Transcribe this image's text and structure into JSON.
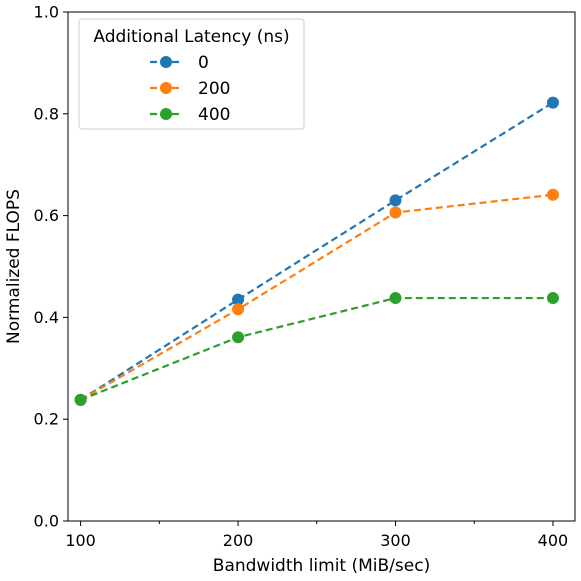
{
  "chart_data": {
    "type": "line",
    "title": "",
    "xlabel": "Bandwidth limit (MiB/sec)",
    "ylabel": "Normalized FLOPS",
    "x": [
      100,
      200,
      300,
      400
    ],
    "x_ticks": [
      "100",
      "200",
      "300",
      "400"
    ],
    "y_ticks": [
      "0.0",
      "0.2",
      "0.4",
      "0.6",
      "0.8",
      "1.0"
    ],
    "xlim": [
      92,
      414
    ],
    "ylim": [
      0.0,
      1.0
    ],
    "grid": false,
    "legend": {
      "title": "Additional Latency (ns)",
      "placement": "top-left"
    },
    "series": [
      {
        "name": "0",
        "color": "#1f77b4",
        "values": [
          0.238,
          0.435,
          0.63,
          0.822
        ]
      },
      {
        "name": "200",
        "color": "#ff7f0e",
        "values": [
          0.238,
          0.416,
          0.606,
          0.641
        ]
      },
      {
        "name": "400",
        "color": "#2ca02c",
        "values": [
          0.238,
          0.361,
          0.438,
          0.438
        ]
      }
    ]
  }
}
